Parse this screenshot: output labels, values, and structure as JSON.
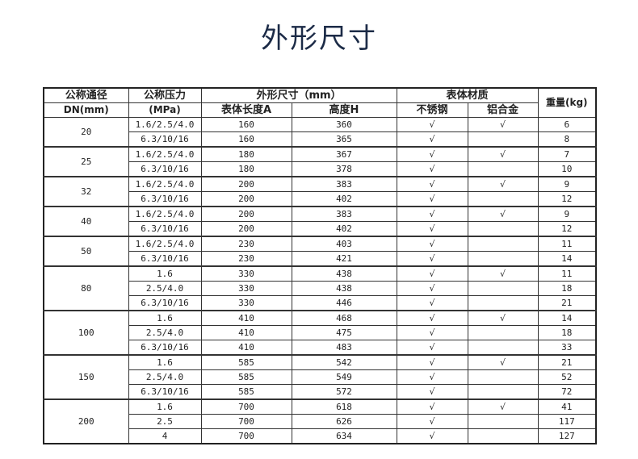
{
  "title": "外形尺寸",
  "table": {
    "headers": {
      "dn": "公称通径",
      "dn_unit": "DN(mm)",
      "pn": "公称压力",
      "pn_unit": "(MPa)",
      "dims": "外形尺寸（mm）",
      "length": "表体长度A",
      "height": "高度H",
      "material": "表体材质",
      "stainless": "不锈钢",
      "aluminum": "铝合金",
      "weight": "重量(kg)"
    },
    "check_mark": "√",
    "groups": [
      {
        "dn": "20",
        "rows": [
          {
            "pn": "1.6/2.5/4.0",
            "a": "160",
            "h": "360",
            "ss": true,
            "al": true,
            "kg": "6"
          },
          {
            "pn": "6.3/10/16",
            "a": "160",
            "h": "365",
            "ss": true,
            "al": false,
            "kg": "8"
          }
        ]
      },
      {
        "dn": "25",
        "rows": [
          {
            "pn": "1.6/2.5/4.0",
            "a": "180",
            "h": "367",
            "ss": true,
            "al": true,
            "kg": "7"
          },
          {
            "pn": "6.3/10/16",
            "a": "180",
            "h": "378",
            "ss": true,
            "al": false,
            "kg": "10"
          }
        ]
      },
      {
        "dn": "32",
        "rows": [
          {
            "pn": "1.6/2.5/4.0",
            "a": "200",
            "h": "383",
            "ss": true,
            "al": true,
            "kg": "9"
          },
          {
            "pn": "6.3/10/16",
            "a": "200",
            "h": "402",
            "ss": true,
            "al": false,
            "kg": "12"
          }
        ]
      },
      {
        "dn": "40",
        "rows": [
          {
            "pn": "1.6/2.5/4.0",
            "a": "200",
            "h": "383",
            "ss": true,
            "al": true,
            "kg": "9"
          },
          {
            "pn": "6.3/10/16",
            "a": "200",
            "h": "402",
            "ss": true,
            "al": false,
            "kg": "12"
          }
        ]
      },
      {
        "dn": "50",
        "rows": [
          {
            "pn": "1.6/2.5/4.0",
            "a": "230",
            "h": "403",
            "ss": true,
            "al": false,
            "kg": "11"
          },
          {
            "pn": "6.3/10/16",
            "a": "230",
            "h": "421",
            "ss": true,
            "al": false,
            "kg": "14"
          }
        ]
      },
      {
        "dn": "80",
        "rows": [
          {
            "pn": "1.6",
            "a": "330",
            "h": "438",
            "ss": true,
            "al": true,
            "kg": "11"
          },
          {
            "pn": "2.5/4.0",
            "a": "330",
            "h": "438",
            "ss": true,
            "al": false,
            "kg": "18"
          },
          {
            "pn": "6.3/10/16",
            "a": "330",
            "h": "446",
            "ss": true,
            "al": false,
            "kg": "21"
          }
        ]
      },
      {
        "dn": "100",
        "rows": [
          {
            "pn": "1.6",
            "a": "410",
            "h": "468",
            "ss": true,
            "al": true,
            "kg": "14"
          },
          {
            "pn": "2.5/4.0",
            "a": "410",
            "h": "475",
            "ss": true,
            "al": false,
            "kg": "18"
          },
          {
            "pn": "6.3/10/16",
            "a": "410",
            "h": "483",
            "ss": true,
            "al": false,
            "kg": "33"
          }
        ]
      },
      {
        "dn": "150",
        "rows": [
          {
            "pn": "1.6",
            "a": "585",
            "h": "542",
            "ss": true,
            "al": true,
            "kg": "21"
          },
          {
            "pn": "2.5/4.0",
            "a": "585",
            "h": "549",
            "ss": true,
            "al": false,
            "kg": "52"
          },
          {
            "pn": "6.3/10/16",
            "a": "585",
            "h": "572",
            "ss": true,
            "al": false,
            "kg": "72"
          }
        ]
      },
      {
        "dn": "200",
        "rows": [
          {
            "pn": "1.6",
            "a": "700",
            "h": "618",
            "ss": true,
            "al": true,
            "kg": "41"
          },
          {
            "pn": "2.5",
            "a": "700",
            "h": "626",
            "ss": true,
            "al": false,
            "kg": "117"
          },
          {
            "pn": "4",
            "a": "700",
            "h": "634",
            "ss": true,
            "al": false,
            "kg": "127"
          }
        ]
      }
    ]
  }
}
